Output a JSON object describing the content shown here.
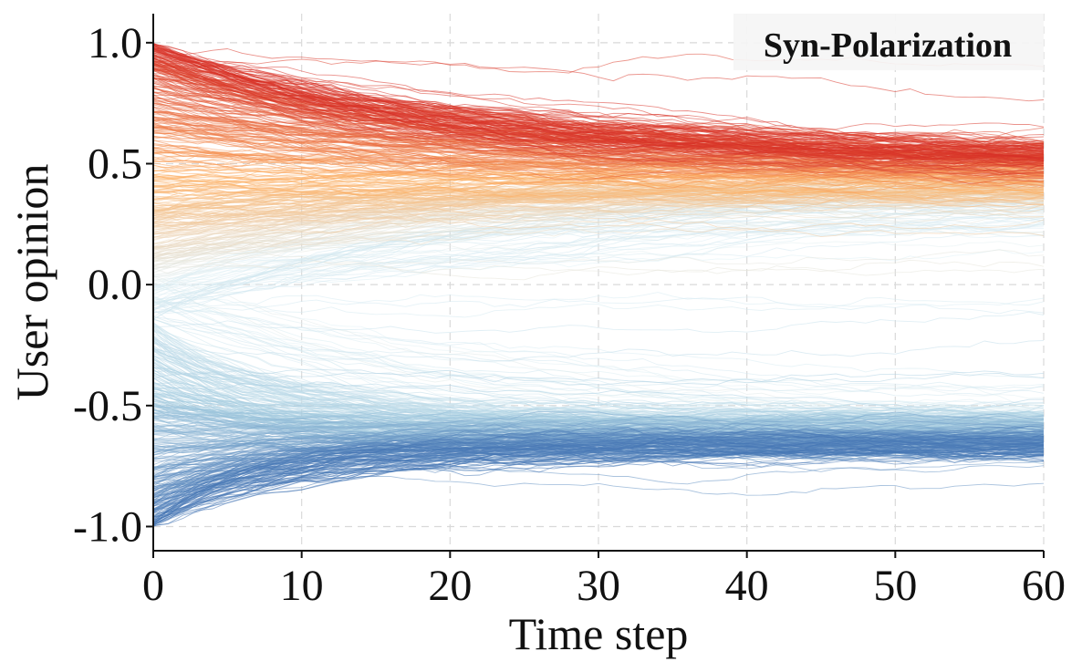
{
  "chart_data": {
    "type": "line",
    "title": "Syn-Polarization",
    "xlabel": "Time step",
    "ylabel": "User opinion",
    "xlim": [
      0,
      60
    ],
    "ylim": [
      -1.1,
      1.12
    ],
    "x_ticks": [
      0,
      10,
      20,
      30,
      40,
      50,
      60
    ],
    "x_tick_labels": [
      "0",
      "10",
      "20",
      "30",
      "40",
      "50",
      "60"
    ],
    "y_ticks": [
      1.0,
      0.5,
      0.0,
      -0.5,
      -1.0
    ],
    "y_tick_labels": [
      "1.0",
      "0.5",
      "0.0",
      "-0.5",
      "-1.0"
    ],
    "grid": true,
    "legend": "none",
    "series_description": "~800 user opinion trajectories, colored by initial opinion (blue = -1 to red = +1)",
    "n_trajectories": 800,
    "time_steps": 60,
    "initial_opinion_range": [
      -1.0,
      1.0
    ],
    "final_clusters": [
      {
        "name": "positive cluster",
        "center": 0.44,
        "spread": [
          0.3,
          0.52
        ]
      },
      {
        "name": "negative cluster",
        "center": -0.62,
        "spread": [
          -0.7,
          -0.48
        ]
      }
    ],
    "colors": {
      "high": "#d73027",
      "mid_high": "#fdae61",
      "mid": "#e0f0f5",
      "mid_low": "#a6cde0",
      "low": "#4575b4"
    }
  }
}
